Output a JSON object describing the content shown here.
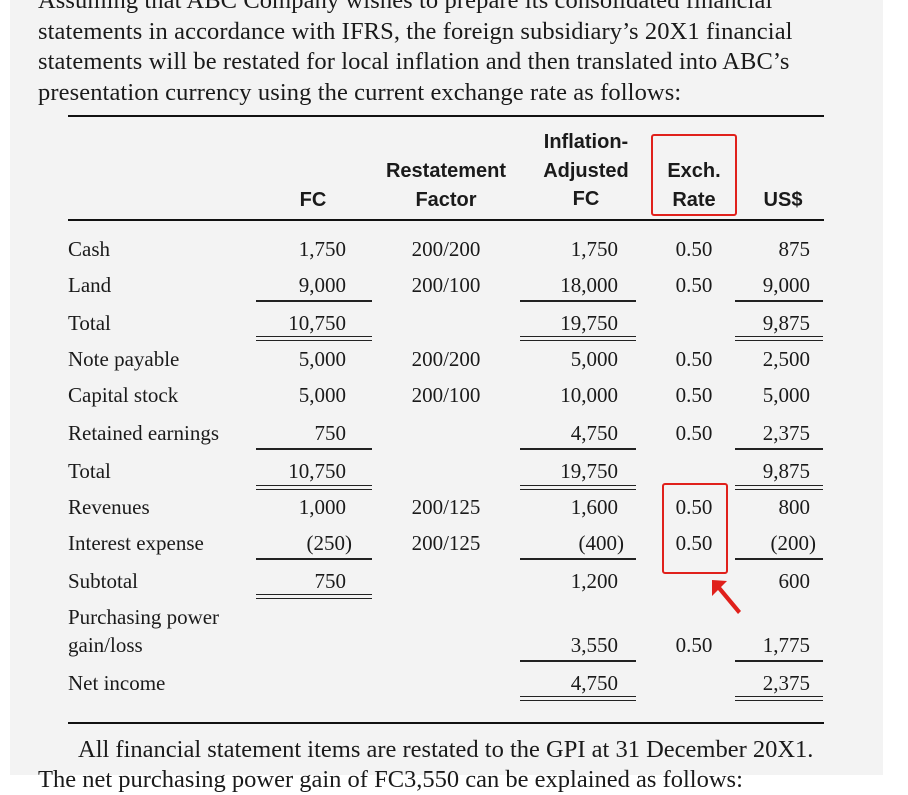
{
  "intro": {
    "line1": "Assuming that ABC Company wishes to prepare its consolidated financial",
    "line2": "statements in accordance with IFRS, the foreign subsidiary’s 20X1 financial",
    "line3": "statements will be restated for local inflation and then translated into ABC’s",
    "line4": "presentation currency using the current exchange rate as follows:"
  },
  "table": {
    "headers": {
      "fc": "FC",
      "factor_1": "Restatement",
      "factor_2": "Factor",
      "infl_1": "Inflation-",
      "infl_2": "Adjusted",
      "infl_3": "FC",
      "rate_1": "Exch.",
      "rate_2": "Rate",
      "usd": "US$"
    },
    "rows": [
      {
        "label": "Cash",
        "fc": "1,750",
        "factor": "200/200",
        "adj": "1,750",
        "rate": "0.50",
        "usd": "875"
      },
      {
        "label": "Land",
        "fc": "9,000",
        "factor": "200/100",
        "adj": "18,000",
        "rate": "0.50",
        "usd": "9,000"
      },
      {
        "label": "Total",
        "fc": "10,750",
        "factor": "",
        "adj": "19,750",
        "rate": "",
        "usd": "9,875"
      },
      {
        "label": "Note payable",
        "fc": "5,000",
        "factor": "200/200",
        "adj": "5,000",
        "rate": "0.50",
        "usd": "2,500"
      },
      {
        "label": "Capital stock",
        "fc": "5,000",
        "factor": "200/100",
        "adj": "10,000",
        "rate": "0.50",
        "usd": "5,000"
      },
      {
        "label": "Retained earnings",
        "fc": "750",
        "factor": "",
        "adj": "4,750",
        "rate": "0.50",
        "usd": "2,375"
      },
      {
        "label": "Total",
        "fc": "10,750",
        "factor": "",
        "adj": "19,750",
        "rate": "",
        "usd": "9,875"
      },
      {
        "label": "Revenues",
        "fc": "1,000",
        "factor": "200/125",
        "adj": "1,600",
        "rate": "0.50",
        "usd": "800"
      },
      {
        "label": "Interest expense",
        "fc": "(250)",
        "factor": "200/125",
        "adj": "(400)",
        "rate": "0.50",
        "usd": "(200)"
      },
      {
        "label": "Subtotal",
        "fc": "750",
        "factor": "",
        "adj": "1,200",
        "rate": "",
        "usd": "600"
      },
      {
        "label_1": "Purchasing power",
        "label_2": "gain/loss",
        "fc": "",
        "factor": "",
        "adj": "3,550",
        "rate": "0.50",
        "usd": "1,775"
      },
      {
        "label": "Net income",
        "fc": "",
        "factor": "",
        "adj": "4,750",
        "rate": "",
        "usd": "2,375"
      }
    ]
  },
  "footer": {
    "line1": "All financial statement items are restated to the GPI at 31 December 20X1.",
    "line2": "The net purchasing power gain of FC3,550 can be explained as follows:"
  },
  "annotation_color": "#e0201b"
}
